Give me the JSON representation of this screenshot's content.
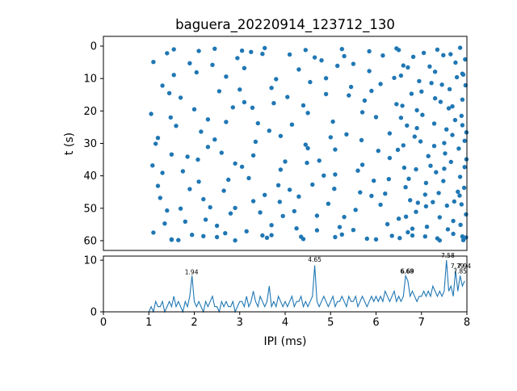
{
  "figure": {
    "title": "baguera_20220914_123712_130",
    "xlabel": "IPI (ms)",
    "ylabel_top": "t (s)",
    "background": "#ffffff",
    "accent": "#1f77b4"
  },
  "chart_data": [
    {
      "type": "scatter",
      "ylabel": "t (s)",
      "xlim": [
        0,
        8
      ],
      "ylim": [
        0,
        60
      ],
      "y_inverted": true,
      "yticks": [
        0,
        10,
        20,
        30,
        40,
        50,
        60
      ],
      "marker_color": "#1f77b4",
      "points": [
        [
          1.1,
          57.5
        ],
        [
          1.3,
          12.2
        ],
        [
          1.5,
          33.4
        ],
        [
          1.7,
          50.1
        ],
        [
          1.9,
          5.3
        ],
        [
          2.1,
          41.8
        ],
        [
          2.3,
          22.6
        ],
        [
          2.5,
          58.9
        ],
        [
          2.7,
          9.4
        ],
        [
          2.9,
          36.2
        ],
        [
          3.1,
          17.3
        ],
        [
          3.3,
          47.8
        ],
        [
          3.5,
          2.4
        ],
        [
          3.7,
          55.2
        ],
        [
          3.9,
          27.7
        ],
        [
          4.1,
          44.3
        ],
        [
          4.3,
          7.2
        ],
        [
          4.5,
          31.5
        ],
        [
          4.7,
          52.3
        ],
        [
          4.9,
          14.8
        ],
        [
          5.1,
          39.6
        ],
        [
          5.3,
          3.1
        ],
        [
          5.5,
          56.7
        ],
        [
          5.7,
          20.4
        ],
        [
          5.9,
          46.2
        ],
        [
          6.1,
          11.7
        ],
        [
          6.3,
          34.5
        ],
        [
          6.5,
          53.2
        ],
        [
          6.7,
          6.6
        ],
        [
          6.9,
          25.3
        ],
        [
          7.1,
          49.4
        ],
        [
          7.3,
          16.1
        ],
        [
          7.5,
          37.8
        ],
        [
          7.7,
          57.9
        ],
        [
          7.9,
          8.5
        ],
        [
          7.95,
          29.2
        ],
        [
          1.2,
          43.1
        ],
        [
          1.4,
          2.2
        ],
        [
          1.6,
          24.6
        ],
        [
          1.8,
          54.1
        ],
        [
          2.0,
          19.5
        ],
        [
          2.2,
          47.2
        ],
        [
          2.4,
          5.8
        ],
        [
          2.6,
          32.9
        ],
        [
          2.8,
          51.6
        ],
        [
          3.0,
          13.4
        ],
        [
          3.2,
          40.7
        ],
        [
          3.4,
          23.8
        ],
        [
          3.6,
          59.1
        ],
        [
          3.8,
          10.2
        ],
        [
          4.0,
          35.6
        ],
        [
          4.2,
          50.9
        ],
        [
          4.4,
          18.3
        ],
        [
          4.6,
          42.7
        ],
        [
          4.8,
          4.4
        ],
        [
          5.0,
          28.1
        ],
        [
          5.2,
          55.8
        ],
        [
          5.4,
          15.2
        ],
        [
          5.6,
          38.4
        ],
        [
          5.8,
          59.4
        ],
        [
          6.0,
          21.9
        ],
        [
          6.2,
          45.5
        ],
        [
          6.4,
          9.8
        ],
        [
          6.6,
          30.6
        ],
        [
          6.8,
          56.3
        ],
        [
          7.0,
          14.0
        ],
        [
          7.2,
          36.9
        ],
        [
          7.4,
          52.8
        ],
        [
          7.6,
          19.2
        ],
        [
          7.8,
          44.9
        ],
        [
          7.92,
          59.8
        ],
        [
          1.15,
          30.1
        ],
        [
          1.35,
          54.7
        ],
        [
          1.55,
          8.9
        ],
        [
          1.75,
          38.6
        ],
        [
          1.95,
          58.2
        ],
        [
          2.15,
          26.4
        ],
        [
          2.35,
          49.7
        ],
        [
          2.55,
          13.9
        ],
        [
          2.75,
          41.2
        ],
        [
          2.95,
          3.7
        ],
        [
          3.15,
          57.1
        ],
        [
          3.35,
          29.5
        ],
        [
          3.55,
          45.9
        ],
        [
          3.75,
          17.6
        ],
        [
          3.95,
          52.4
        ],
        [
          4.15,
          24.2
        ],
        [
          4.35,
          58.8
        ],
        [
          4.55,
          11.1
        ],
        [
          4.75,
          35.3
        ],
        [
          4.95,
          48.6
        ],
        [
          5.15,
          6.1
        ],
        [
          5.35,
          27.2
        ],
        [
          5.55,
          50.5
        ],
        [
          5.75,
          16.8
        ],
        [
          5.95,
          41.5
        ],
        [
          6.15,
          2.9
        ],
        [
          6.35,
          58.5
        ],
        [
          6.55,
          22.1
        ],
        [
          6.75,
          47.5
        ],
        [
          6.95,
          10.8
        ],
        [
          7.15,
          33.9
        ],
        [
          7.35,
          59.3
        ],
        [
          7.55,
          25.7
        ],
        [
          7.75,
          5.1
        ],
        [
          7.85,
          40.3
        ],
        [
          1.05,
          20.9
        ],
        [
          1.25,
          46.8
        ],
        [
          1.45,
          14.5
        ],
        [
          1.65,
          59.8
        ],
        [
          1.85,
          34.1
        ],
        [
          2.05,
          8.1
        ],
        [
          2.25,
          53.5
        ],
        [
          2.45,
          28.8
        ],
        [
          2.65,
          44.6
        ],
        [
          2.85,
          18.9
        ],
        [
          3.05,
          37.2
        ],
        [
          3.25,
          1.8
        ],
        [
          3.45,
          51.3
        ],
        [
          3.65,
          26.1
        ],
        [
          3.85,
          42.9
        ],
        [
          4.05,
          15.7
        ],
        [
          4.25,
          56.2
        ],
        [
          4.45,
          30.4
        ],
        [
          4.65,
          3.5
        ],
        [
          4.85,
          39.9
        ],
        [
          5.05,
          23.3
        ],
        [
          5.25,
          58.1
        ],
        [
          5.45,
          12.6
        ],
        [
          5.65,
          45.1
        ],
        [
          5.85,
          7.7
        ],
        [
          6.05,
          32.3
        ],
        [
          6.25,
          54.9
        ],
        [
          6.45,
          17.9
        ],
        [
          6.65,
          43.5
        ],
        [
          6.85,
          27.9
        ],
        [
          7.05,
          2.1
        ],
        [
          7.25,
          48.1
        ],
        [
          7.45,
          11.9
        ],
        [
          7.65,
          35.7
        ],
        [
          7.88,
          21.5
        ],
        [
          7.98,
          51.9
        ],
        [
          1.1,
          4.9
        ],
        [
          1.3,
          39.1
        ],
        [
          1.5,
          59.6
        ],
        [
          1.7,
          15.9
        ],
        [
          1.9,
          44.1
        ],
        [
          2.1,
          1.5
        ],
        [
          2.3,
          31.1
        ],
        [
          2.5,
          55.4
        ],
        [
          2.7,
          23.4
        ],
        [
          2.9,
          49.9
        ],
        [
          3.1,
          6.8
        ],
        [
          3.3,
          33.7
        ],
        [
          3.5,
          58.4
        ],
        [
          3.7,
          12.9
        ],
        [
          3.9,
          38.1
        ],
        [
          4.1,
          2.6
        ],
        [
          4.3,
          46.4
        ],
        [
          4.5,
          20.6
        ],
        [
          4.7,
          56.8
        ],
        [
          4.9,
          9.9
        ],
        [
          5.1,
          31.9
        ],
        [
          5.3,
          52.7
        ],
        [
          5.5,
          5.5
        ],
        [
          5.7,
          36.6
        ],
        [
          5.9,
          13.8
        ],
        [
          6.1,
          48.9
        ],
        [
          6.3,
          26.9
        ],
        [
          6.5,
          1.2
        ],
        [
          6.7,
          57.4
        ],
        [
          6.9,
          19.8
        ],
        [
          7.1,
          42.2
        ],
        [
          7.3,
          7.9
        ],
        [
          7.5,
          29.9
        ],
        [
          7.7,
          53.9
        ],
        [
          7.9,
          16.5
        ],
        [
          7.96,
          4.1
        ],
        [
          1.2,
          28.3
        ],
        [
          1.4,
          50.7
        ],
        [
          6.55,
          9.1
        ],
        [
          6.62,
          37.5
        ],
        [
          6.78,
          14.7
        ],
        [
          6.88,
          51.1
        ],
        [
          6.98,
          29.4
        ],
        [
          7.08,
          58.7
        ],
        [
          7.18,
          6.3
        ],
        [
          7.28,
          23.9
        ],
        [
          7.38,
          45.3
        ],
        [
          7.48,
          2.8
        ],
        [
          7.52,
          33.1
        ],
        [
          7.58,
          56.5
        ],
        [
          7.62,
          13.3
        ],
        [
          7.68,
          27.4
        ],
        [
          7.72,
          47.9
        ],
        [
          7.78,
          9.6
        ],
        [
          7.82,
          31.6
        ],
        [
          7.86,
          55.1
        ],
        [
          7.9,
          24.4
        ],
        [
          7.94,
          43.7
        ],
        [
          7.97,
          12.1
        ],
        [
          7.99,
          34.9
        ],
        [
          6.52,
          59.2
        ],
        [
          6.58,
          18.4
        ],
        [
          6.72,
          40.9
        ],
        [
          6.82,
          3.3
        ],
        [
          6.92,
          48.3
        ],
        [
          7.02,
          21.2
        ],
        [
          7.12,
          55.7
        ],
        [
          7.22,
          11.4
        ],
        [
          7.32,
          38.9
        ],
        [
          7.42,
          17.2
        ],
        [
          7.56,
          49.2
        ],
        [
          7.64,
          2.5
        ],
        [
          7.74,
          22.8
        ],
        [
          7.84,
          46.1
        ],
        [
          7.92,
          8.8
        ],
        [
          7.98,
          59.0
        ],
        [
          6.6,
          6.0
        ],
        [
          6.66,
          52.6
        ],
        [
          1.55,
          1.0
        ],
        [
          2.45,
          0.8
        ],
        [
          3.05,
          1.4
        ],
        [
          3.55,
          0.6
        ],
        [
          4.45,
          1.2
        ],
        [
          5.25,
          0.9
        ],
        [
          5.85,
          1.6
        ],
        [
          6.45,
          0.7
        ],
        [
          7.35,
          1.1
        ],
        [
          7.85,
          0.5
        ],
        [
          1.5,
          59.7
        ],
        [
          2.2,
          58.6
        ],
        [
          2.9,
          59.9
        ],
        [
          3.7,
          58.3
        ],
        [
          4.4,
          59.5
        ],
        [
          5.1,
          58.9
        ],
        [
          6.0,
          59.6
        ],
        [
          6.8,
          58.4
        ],
        [
          7.4,
          59.9
        ],
        [
          7.9,
          58.7
        ],
        [
          1.08,
          36.8
        ],
        [
          1.48,
          22.0
        ],
        [
          2.08,
          35.0
        ],
        [
          2.68,
          57.7
        ],
        [
          3.28,
          19.0
        ],
        [
          3.88,
          48.0
        ],
        [
          4.48,
          36.0
        ],
        [
          5.08,
          44.0
        ],
        [
          5.68,
          29.0
        ],
        [
          6.28,
          41.0
        ],
        [
          6.48,
          32.0
        ],
        [
          6.68,
          24.5
        ],
        [
          6.88,
          38.0
        ],
        [
          7.08,
          45.8
        ],
        [
          7.28,
          30.8
        ],
        [
          7.48,
          41.6
        ],
        [
          7.68,
          18.6
        ],
        [
          7.88,
          48.8
        ],
        [
          7.95,
          37.3
        ],
        [
          7.99,
          26.6
        ]
      ]
    },
    {
      "type": "line",
      "xlabel": "IPI (ms)",
      "xlim": [
        0,
        8
      ],
      "ylim": [
        0,
        10
      ],
      "xticks": [
        0,
        1,
        2,
        3,
        4,
        5,
        6,
        7,
        8
      ],
      "yticks": [
        0,
        10
      ],
      "line_color": "#1f77b4",
      "x_start": 0,
      "x_step": 0.05,
      "values": [
        0,
        0,
        0,
        0,
        0,
        0,
        0,
        0,
        0,
        0,
        0,
        0,
        0,
        0,
        0,
        0,
        0,
        0,
        0,
        0,
        0,
        1,
        0,
        2,
        1,
        1,
        2,
        0,
        1,
        2,
        1,
        3,
        1,
        2,
        1,
        0,
        2,
        1,
        3,
        7,
        2,
        1,
        2,
        1,
        0,
        2,
        1,
        2,
        3,
        1,
        1,
        0,
        2,
        1,
        2,
        1,
        1,
        2,
        0,
        1,
        2,
        2,
        1,
        3,
        1,
        2,
        4,
        2,
        1,
        3,
        2,
        1,
        2,
        5,
        1,
        2,
        1,
        3,
        2,
        1,
        2,
        1,
        2,
        3,
        1,
        2,
        2,
        3,
        1,
        2,
        1,
        2,
        3,
        9,
        2,
        1,
        2,
        3,
        2,
        1,
        2,
        3,
        1,
        2,
        2,
        3,
        2,
        1,
        3,
        2,
        2,
        3,
        1,
        2,
        3,
        2,
        1,
        2,
        3,
        2,
        3,
        2,
        3,
        2,
        4,
        3,
        2,
        3,
        4,
        2,
        3,
        2,
        3,
        7,
        6,
        3,
        4,
        3,
        2,
        3,
        3,
        4,
        3,
        4,
        3,
        5,
        4,
        3,
        4,
        3,
        4,
        10,
        4,
        5,
        3,
        8,
        4,
        7,
        5,
        6
      ],
      "annotations": [
        {
          "x": 1.94,
          "y": 6.8,
          "label": "1.94"
        },
        {
          "x": 4.65,
          "y": 9.2,
          "label": "4.65"
        },
        {
          "x": 6.68,
          "y": 7.0,
          "label": "6.68"
        },
        {
          "x": 6.69,
          "y": 7.0,
          "label": "6.69"
        },
        {
          "x": 7.58,
          "y": 10.0,
          "label": "7.58"
        },
        {
          "x": 7.79,
          "y": 8.0,
          "label": "7.79"
        },
        {
          "x": 7.94,
          "y": 8.0,
          "label": "7.94"
        },
        {
          "x": 7.85,
          "y": 7.0,
          "label": "7.85"
        }
      ]
    }
  ]
}
